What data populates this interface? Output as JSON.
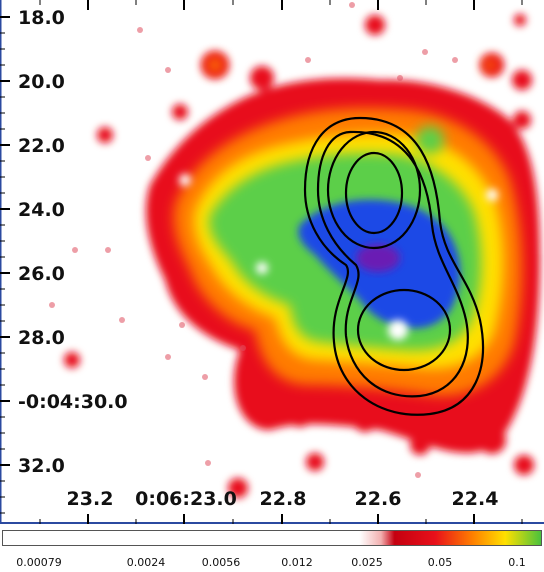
{
  "image": {
    "y_axis_labels": [
      "18.0",
      "20.0",
      "22.0",
      "24.0",
      "26.0",
      "28.0",
      "-0:04:30.0",
      "32.0"
    ],
    "x_axis_labels": [
      "23.2",
      "0:06:23.0",
      "22.8",
      "22.6",
      "22.4"
    ],
    "colormap_labels": [
      "0.00079",
      "0.0024",
      "0.0056",
      "0.012",
      "0.025",
      "0.05",
      "0.1"
    ],
    "colors": {
      "frame": "#2b4aa0",
      "contour": "#000000",
      "red": "#e60012",
      "orange": "#ff7a00",
      "yellow": "#ffe000",
      "green": "#58d24a",
      "blue": "#1f4ae6",
      "purple": "#6a1fb4"
    }
  }
}
